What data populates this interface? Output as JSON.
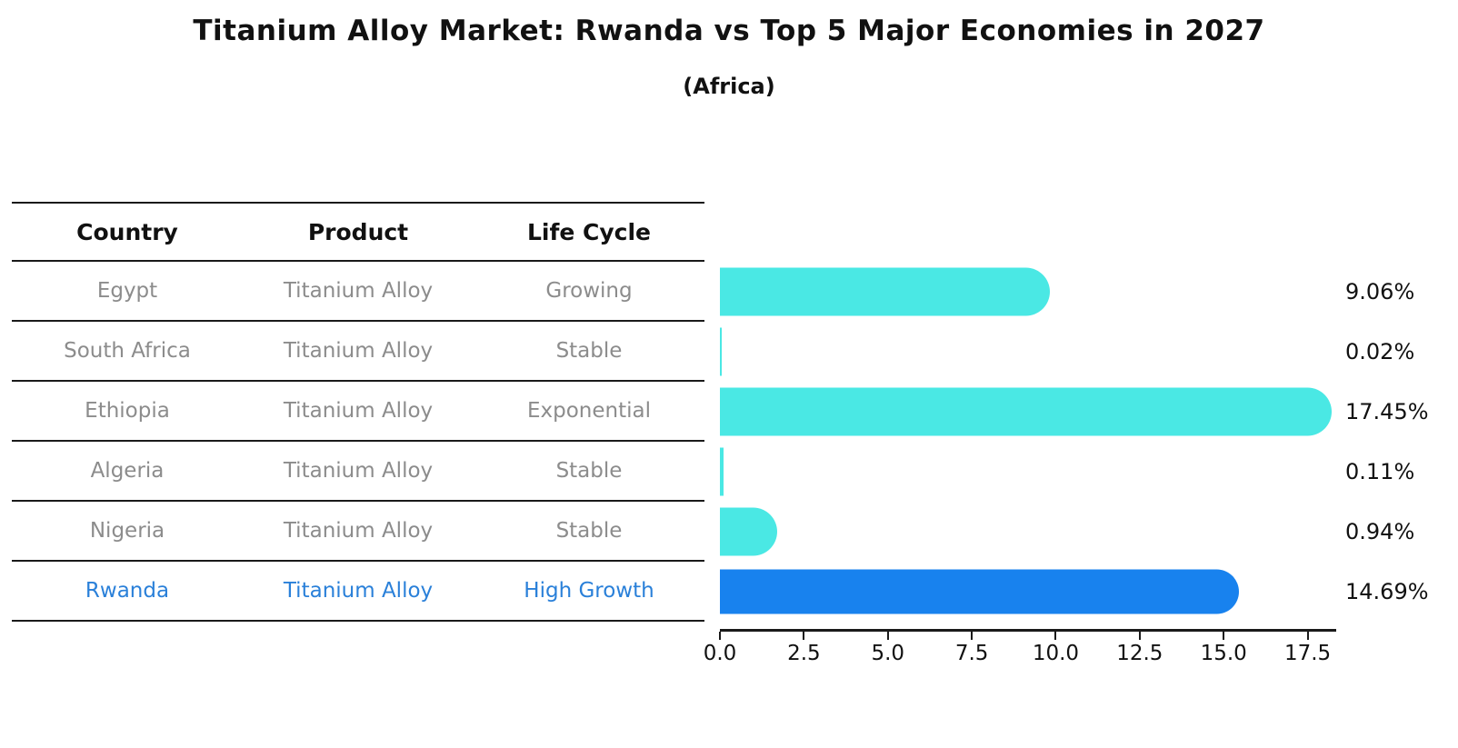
{
  "title": "Titanium Alloy Market: Rwanda vs Top 5 Major Economies in 2027",
  "subtitle": "(Africa)",
  "table": {
    "headers": [
      "Country",
      "Product",
      "Life Cycle"
    ],
    "rows": [
      {
        "country": "Egypt",
        "product": "Titanium Alloy",
        "life_cycle": "Growing"
      },
      {
        "country": "South Africa",
        "product": "Titanium Alloy",
        "life_cycle": "Stable"
      },
      {
        "country": "Ethiopia",
        "product": "Titanium Alloy",
        "life_cycle": "Exponential"
      },
      {
        "country": "Algeria",
        "product": "Titanium Alloy",
        "life_cycle": "Stable"
      },
      {
        "country": "Nigeria",
        "product": "Titanium Alloy",
        "life_cycle": "Stable"
      },
      {
        "country": "Rwanda",
        "product": "Titanium Alloy",
        "life_cycle": "High Growth"
      }
    ],
    "highlight_row": "Rwanda"
  },
  "chart_data": {
    "type": "bar",
    "orientation": "horizontal",
    "title": "Titanium Alloy Market: Rwanda vs Top 5 Major Economies in 2027",
    "subtitle": "(Africa)",
    "categories": [
      "Egypt",
      "South Africa",
      "Ethiopia",
      "Algeria",
      "Nigeria",
      "Rwanda"
    ],
    "values": [
      9.06,
      0.02,
      17.45,
      0.11,
      0.94,
      14.69
    ],
    "value_labels": [
      "9.06%",
      "0.02%",
      "17.45%",
      "0.11%",
      "0.94%",
      "14.69%"
    ],
    "unit": "%",
    "x_tick_values": [
      0,
      2.5,
      5,
      7.5,
      10,
      12.5,
      15,
      17.5
    ],
    "x_tick_labels": [
      "0.0",
      "2.5",
      "5.0",
      "7.5",
      "10.0",
      "12.5",
      "15.0",
      "17.5"
    ],
    "xlim": [
      0,
      18.35
    ],
    "highlight_index": 5,
    "grid": false,
    "legend": "none"
  },
  "colors": {
    "bar": "#4AE8E4",
    "highlight_bar": "#1882EE",
    "highlight_text": "#2A80D9",
    "row_text": "#8C8C8C",
    "line": "#1A1A1A",
    "background": "#FFFFFF"
  }
}
